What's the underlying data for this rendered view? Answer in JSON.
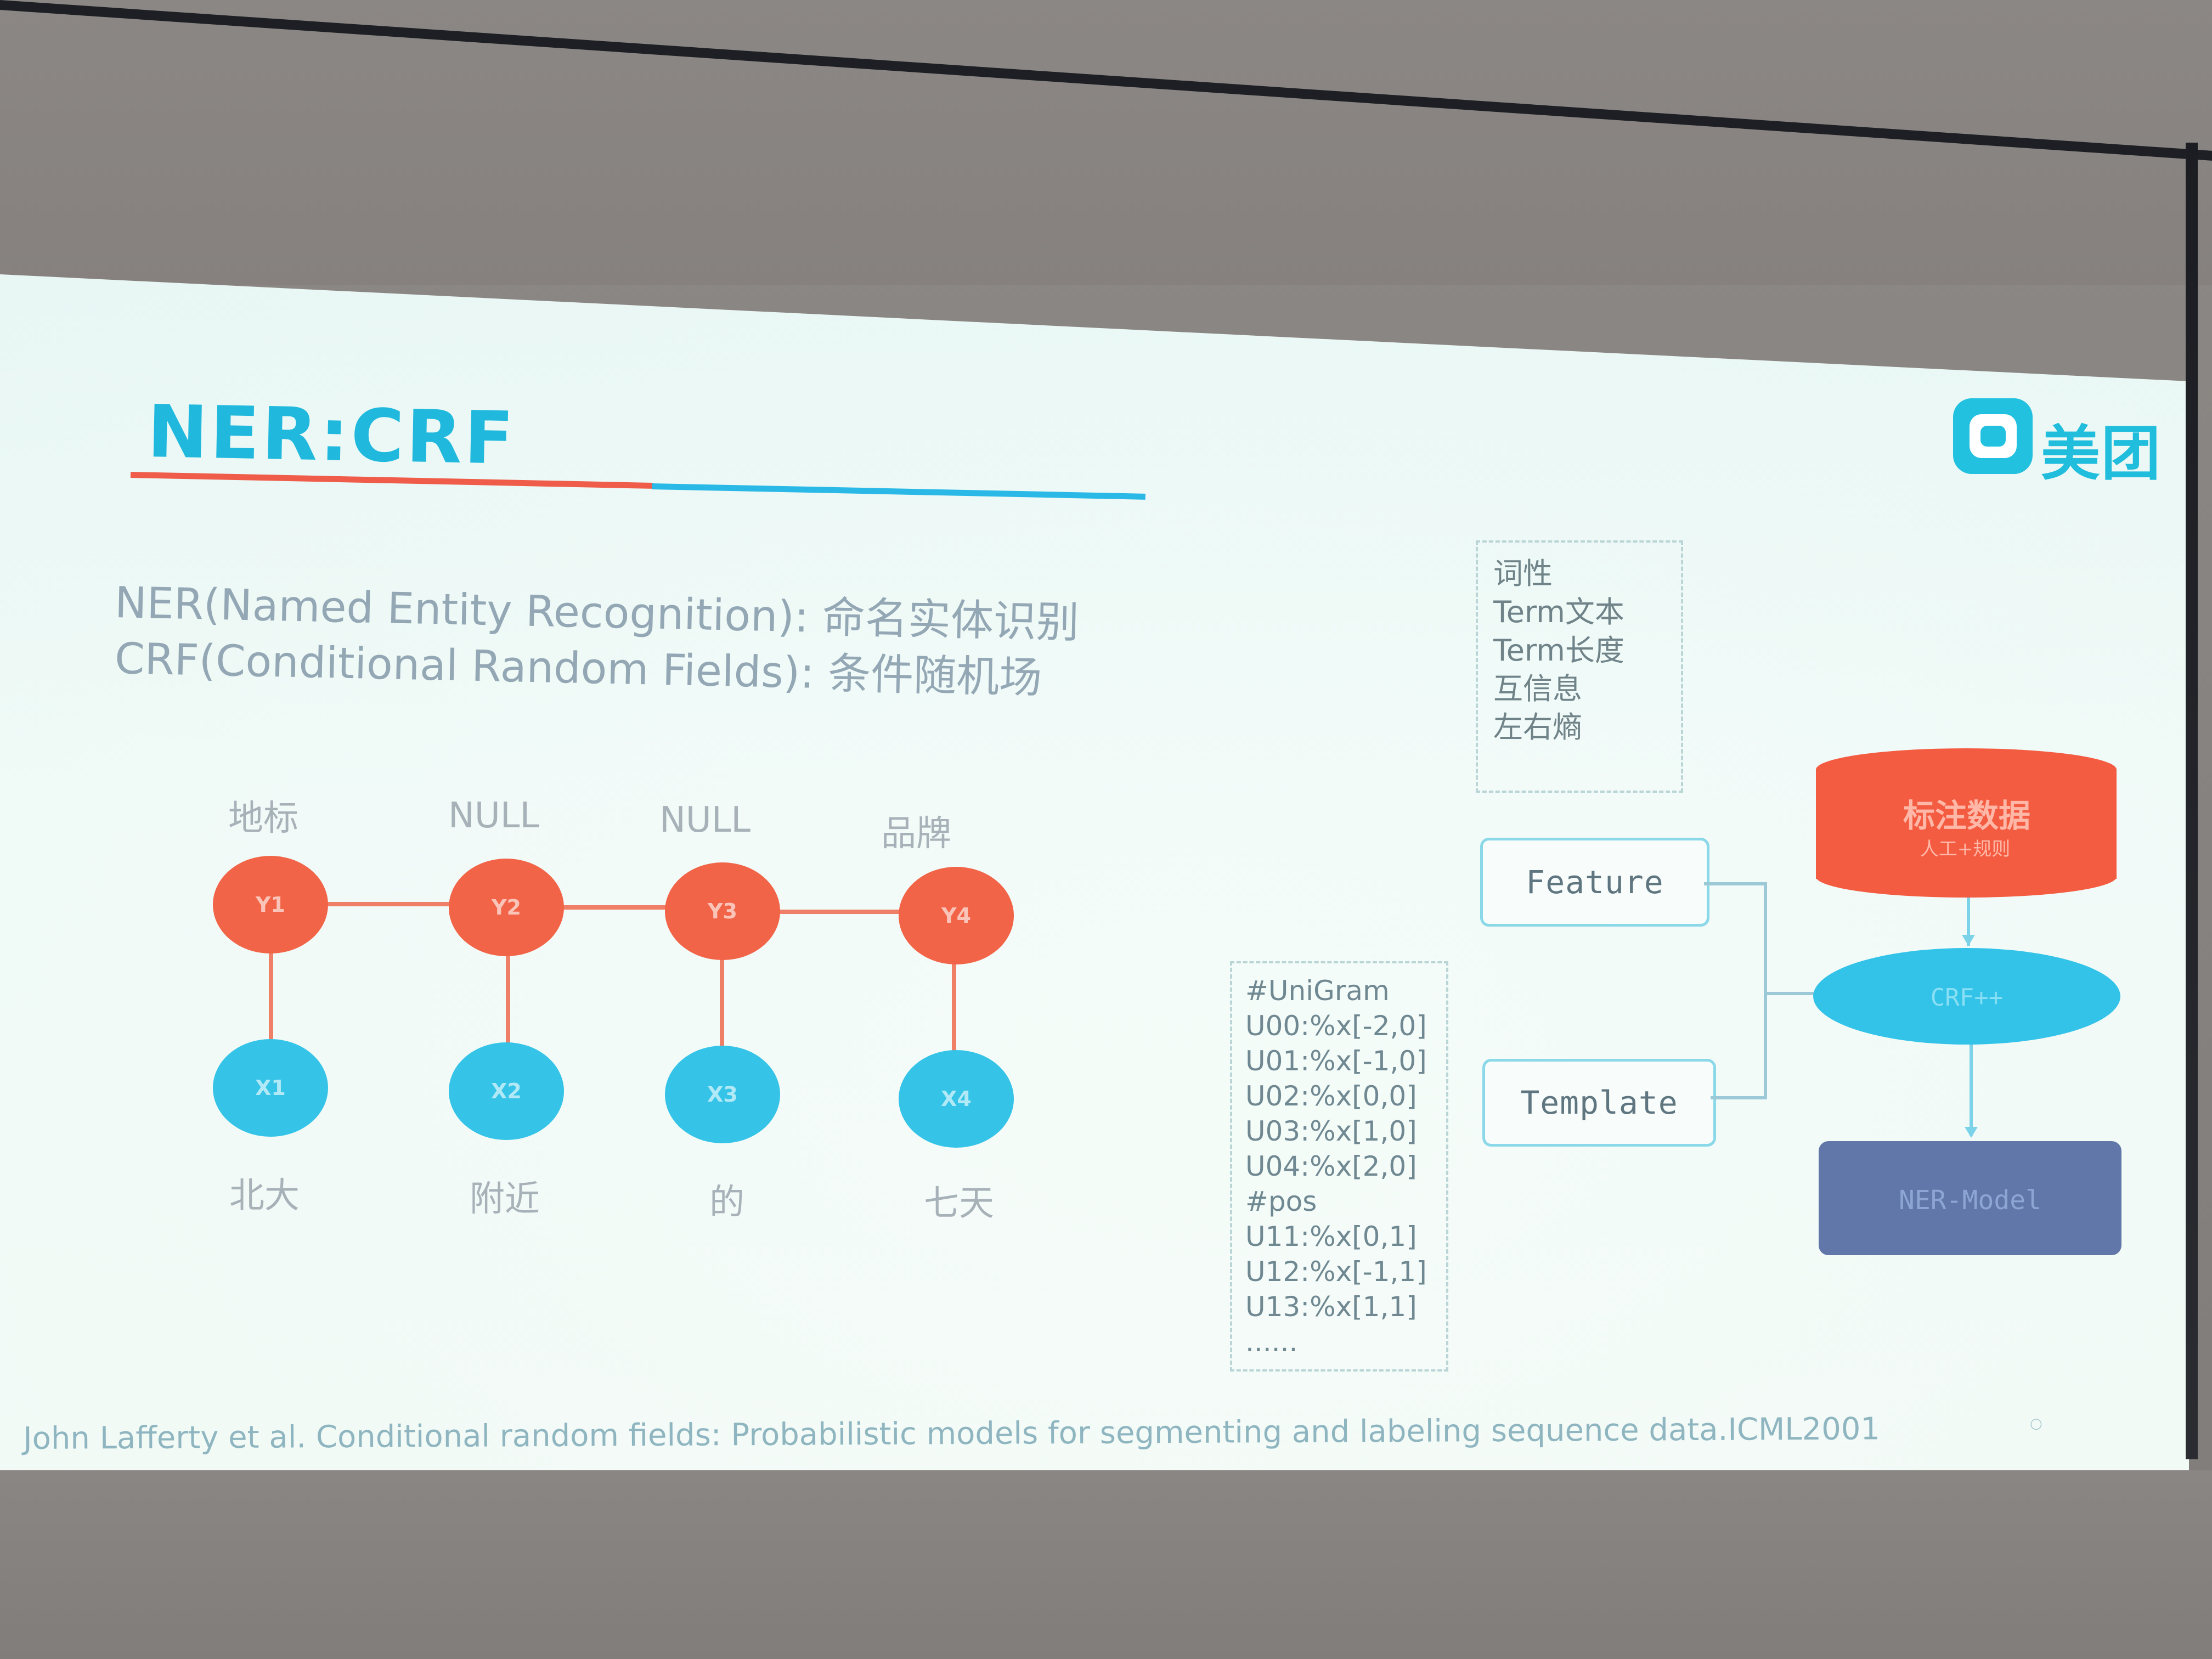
{
  "slide": {
    "title": "NER:CRF",
    "logo_text": "美团",
    "definitions": [
      "NER(Named Entity Recognition): 命名实体识别",
      "CRF(Conditional Random Fields): 条件随机场"
    ],
    "graph": {
      "labels_top": [
        "地标",
        "NULL",
        "NULL",
        "品牌"
      ],
      "y_nodes": [
        "Y1",
        "Y2",
        "Y3",
        "Y4"
      ],
      "x_nodes": [
        "X1",
        "X2",
        "X3",
        "X4"
      ],
      "words_bottom": [
        "北大",
        "附近",
        "的",
        "七天"
      ]
    },
    "feature_list": [
      "词性",
      "Term文本",
      "Term长度",
      "互信息",
      "左右熵"
    ],
    "template_list": [
      "#UniGram",
      "U00:%x[-2,0]",
      "U01:%x[-1,0]",
      "U02:%x[0,0]",
      "U03:%x[1,0]",
      "U04:%x[2,0]",
      "#pos",
      "U11:%x[0,1]",
      "U12:%x[-1,1]",
      "U13:%x[1,1]",
      "......"
    ],
    "feature_label": "Feature",
    "template_label": "Template",
    "database_title": "标注数据",
    "database_subtitle": "人工+规则",
    "crf_label": "CRF++",
    "model_label": "NER-Model",
    "reference": "John Lafferty et al. Conditional random fields: Probabilistic models for segmenting and labeling sequence data.ICML2001"
  },
  "colors": {
    "accent_blue": "#20b9dd",
    "accent_red": "#f26447",
    "accent_cyan": "#35c4e7",
    "model_blue": "#6177a9"
  }
}
